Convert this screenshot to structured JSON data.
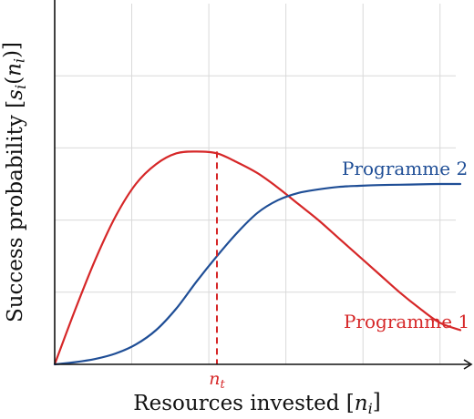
{
  "chart_data": {
    "type": "line",
    "title": "",
    "xlabel": "Resources invested [n_i]",
    "ylabel": "Success probability [s_i(n_i)]",
    "xlim": [
      0,
      1
    ],
    "ylim": [
      0,
      1
    ],
    "grid": true,
    "x_ticks": [
      0.19,
      0.38,
      0.57,
      0.76,
      0.95
    ],
    "y_ticks": [
      0.2,
      0.4,
      0.6,
      0.8
    ],
    "x_tick_label_text": "",
    "y_tick_label_text": "",
    "series": [
      {
        "name": "Programme 1",
        "color": "#d62728",
        "x": [
          0,
          0.05,
          0.1,
          0.15,
          0.2,
          0.25,
          0.3,
          0.35,
          0.4,
          0.45,
          0.5,
          0.55,
          0.6,
          0.65,
          0.7,
          0.75,
          0.8,
          0.85,
          0.9,
          0.95,
          1.0
        ],
        "y": [
          0,
          0.15,
          0.29,
          0.41,
          0.5,
          0.555,
          0.585,
          0.59,
          0.585,
          0.56,
          0.53,
          0.49,
          0.445,
          0.4,
          0.35,
          0.3,
          0.25,
          0.2,
          0.155,
          0.115,
          0.095
        ]
      },
      {
        "name": "Programme 2",
        "color": "#1f4e96",
        "x": [
          0,
          0.05,
          0.1,
          0.15,
          0.2,
          0.25,
          0.3,
          0.35,
          0.4,
          0.45,
          0.5,
          0.55,
          0.6,
          0.65,
          0.7,
          0.75,
          0.8,
          0.85,
          0.9,
          0.95,
          1.0
        ],
        "y": [
          0,
          0.006,
          0.015,
          0.03,
          0.055,
          0.095,
          0.155,
          0.23,
          0.3,
          0.365,
          0.42,
          0.455,
          0.475,
          0.485,
          0.492,
          0.495,
          0.497,
          0.498,
          0.499,
          0.5,
          0.5
        ]
      }
    ],
    "annotations": [
      {
        "type": "vline",
        "x": 0.4,
        "y_top": 0.59,
        "color": "#d62728",
        "style": "dashed",
        "label": "n_t"
      }
    ],
    "series_labels": [
      {
        "series": "Programme 2",
        "text": "Programme 2",
        "color": "#1f4e96"
      },
      {
        "series": "Programme 1",
        "text": "Programme 1",
        "color": "#d62728"
      }
    ]
  }
}
